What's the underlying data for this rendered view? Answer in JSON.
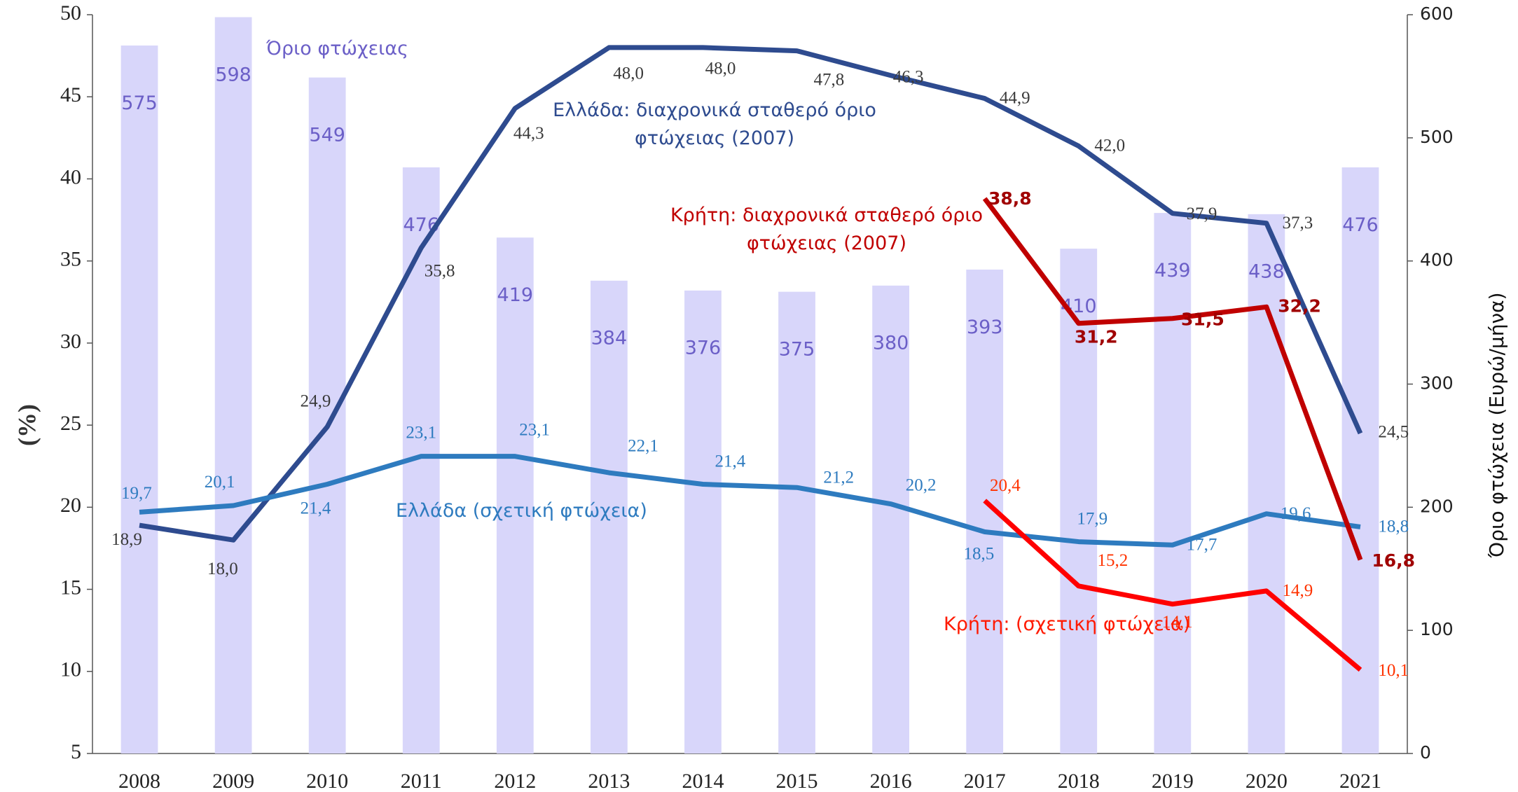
{
  "chart_data": {
    "type": "combo",
    "categories": [
      "2008",
      "2009",
      "2010",
      "2011",
      "2012",
      "2013",
      "2014",
      "2015",
      "2016",
      "2017",
      "2018",
      "2019",
      "2020",
      "2021"
    ],
    "ylabel": "(%)",
    "y2label": "Όριο φτώχεια (Ευρώ/μήνα)",
    "ylim": [
      5,
      50
    ],
    "yticks": [
      5,
      10,
      15,
      20,
      25,
      30,
      35,
      40,
      45,
      50
    ],
    "y2lim": [
      0,
      600
    ],
    "y2ticks": [
      0,
      100,
      200,
      300,
      400,
      500,
      600
    ],
    "grid": false,
    "series": [
      {
        "name": "Όριο φτώχειας",
        "type": "bar",
        "axis": "y2",
        "color": "#d8d6fa",
        "label_color": "#6b5fc7",
        "values": [
          575,
          598,
          549,
          476,
          419,
          384,
          376,
          375,
          380,
          393,
          410,
          439,
          438,
          476
        ]
      },
      {
        "name": "Ελλάδα: διαχρονικά σταθερό όριο φτώχειας (2007)",
        "type": "line",
        "axis": "y",
        "color": "#2e4b8f",
        "label_color": "#3a3a3a",
        "values": [
          18.9,
          18.0,
          24.9,
          35.8,
          44.3,
          48.0,
          48.0,
          47.8,
          46.3,
          44.9,
          42.0,
          37.9,
          37.3,
          24.5
        ],
        "value_labels": [
          "18,9",
          "18,0",
          "24,9",
          "35,8",
          "44,3",
          "48,0",
          "48,0",
          "47,8",
          "46,3",
          "44,9",
          "42,0",
          "37,9",
          "37,3",
          "24,5"
        ]
      },
      {
        "name": "Ελλάδα (σχετική φτώχεια)",
        "type": "line",
        "axis": "y",
        "color": "#2e7bbf",
        "label_color": "#2e7bbf",
        "values": [
          19.7,
          20.1,
          21.4,
          23.1,
          23.1,
          22.1,
          21.4,
          21.2,
          20.2,
          18.5,
          17.9,
          17.7,
          19.6,
          18.8
        ],
        "value_labels": [
          "19,7",
          "20,1",
          "21,4",
          "23,1",
          "23,1",
          "22,1",
          "21,4",
          "21,2",
          "20,2",
          "18,5",
          "17,9",
          "17,7",
          "19,6",
          "18,8"
        ]
      },
      {
        "name": "Κρήτη: διαχρονικά σταθερό όριο φτώχειας (2007)",
        "type": "line",
        "axis": "y",
        "color": "#c00000",
        "label_color": "#a00000",
        "values": [
          null,
          null,
          null,
          null,
          null,
          null,
          null,
          null,
          null,
          38.8,
          31.2,
          31.5,
          32.2,
          16.8
        ],
        "value_labels": [
          null,
          null,
          null,
          null,
          null,
          null,
          null,
          null,
          null,
          "38,8",
          "31,2",
          "31,5",
          "32,2",
          "16,8"
        ]
      },
      {
        "name": "Κρήτη: (σχετική φτώχεια)",
        "type": "line",
        "axis": "y",
        "color": "#ff0000",
        "label_color": "#ff3300",
        "values": [
          null,
          null,
          null,
          null,
          null,
          null,
          null,
          null,
          null,
          20.4,
          15.2,
          14.1,
          14.9,
          10.1
        ],
        "value_labels": [
          null,
          null,
          null,
          null,
          null,
          null,
          null,
          null,
          null,
          "20,4",
          "15,2",
          "14,1",
          "14,9",
          "10,1"
        ]
      }
    ]
  }
}
